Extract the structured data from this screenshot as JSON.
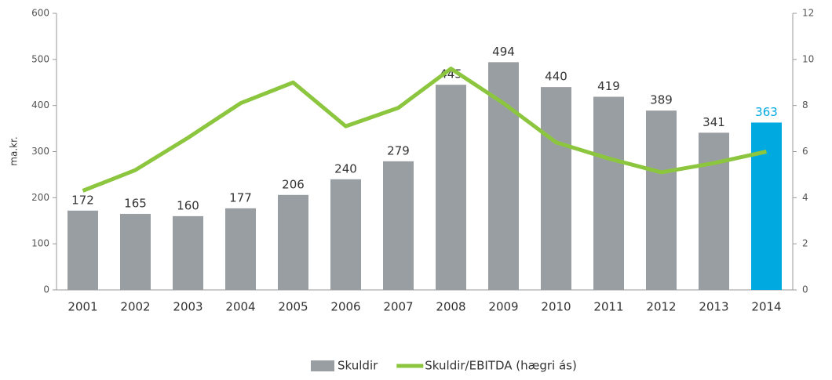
{
  "chart_data": {
    "type": "bar",
    "y_label": "ma.kr.",
    "categories": [
      "2001",
      "2002",
      "2003",
      "2004",
      "2005",
      "2006",
      "2007",
      "2008",
      "2009",
      "2010",
      "2011",
      "2012",
      "2013",
      "2014"
    ],
    "series": [
      {
        "name": "Skuldir",
        "type": "bar",
        "color": "#999ea2",
        "colors": [
          "#999ea2",
          "#999ea2",
          "#999ea2",
          "#999ea2",
          "#999ea2",
          "#999ea2",
          "#999ea2",
          "#999ea2",
          "#999ea2",
          "#999ea2",
          "#999ea2",
          "#999ea2",
          "#999ea2",
          "#00a9e0"
        ],
        "values": [
          172,
          165,
          160,
          177,
          206,
          240,
          279,
          445,
          494,
          440,
          419,
          389,
          341,
          363
        ]
      },
      {
        "name": "Skuldir/EBITDA (hægri ás)",
        "type": "line",
        "axis": "y2",
        "color": "#8cc63f",
        "values": [
          4.3,
          5.2,
          6.6,
          8.1,
          9.0,
          7.1,
          7.9,
          9.6,
          8.1,
          6.4,
          5.7,
          5.1,
          5.5,
          6.0
        ]
      }
    ],
    "ylim": [
      0,
      600
    ],
    "yticks": [
      0,
      100,
      200,
      300,
      400,
      500,
      600
    ],
    "y2lim": [
      0,
      12
    ],
    "y2ticks": [
      0,
      2,
      4,
      6,
      8,
      10,
      12
    ],
    "legend": "bottom"
  }
}
